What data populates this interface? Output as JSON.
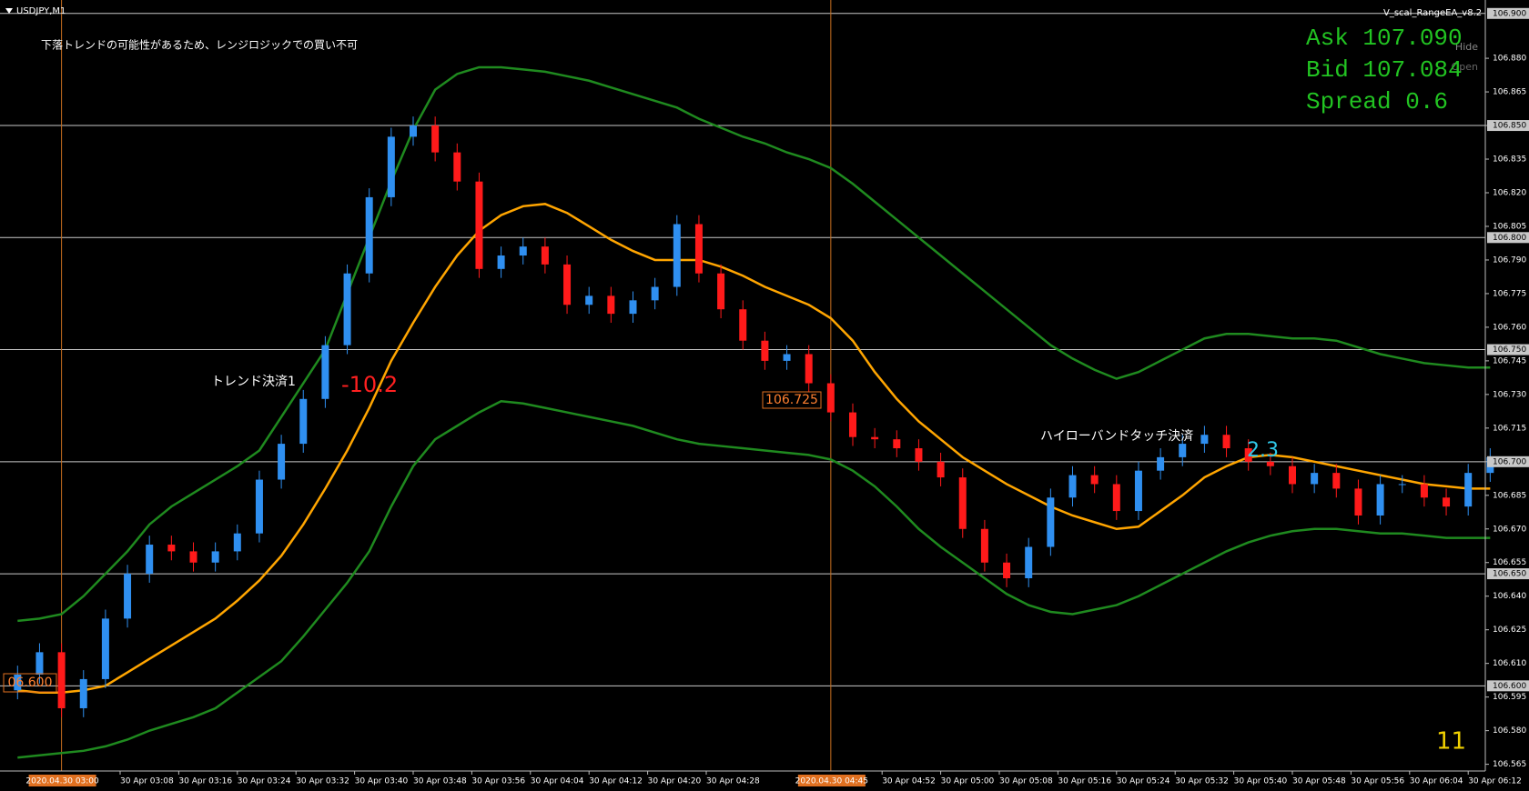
{
  "header": {
    "symbol": "USDJPY,M1",
    "ea": "V_scal_RangeEA_v8.2",
    "hide": "Hide",
    "open": "Open"
  },
  "info": {
    "ask": "Ask 107.090",
    "bid": "Bid 107.084",
    "spread": "Spread 0.6"
  },
  "notes": {
    "warning": "下落トレンドの可能性があるため、レンジロジックでの買い不可",
    "trend_exit": "トレンド決済1",
    "trend_result": "-10.2",
    "band_exit": "ハイローバンドタッチ決済",
    "band_result": "2.3",
    "counter": "11",
    "price_box": "106.725",
    "left_box": "06.600"
  },
  "chart_data": {
    "type": "candlestick",
    "x": [
      "30 Apr 02:54",
      "30 Apr 02:57",
      "30 Apr 03:00",
      "30 Apr 03:03",
      "30 Apr 03:06",
      "30 Apr 03:09",
      "30 Apr 03:12",
      "30 Apr 03:15",
      "30 Apr 03:18",
      "30 Apr 03:21",
      "30 Apr 03:24",
      "30 Apr 03:27",
      "30 Apr 03:30",
      "30 Apr 03:33",
      "30 Apr 03:36",
      "30 Apr 03:39",
      "30 Apr 03:42",
      "30 Apr 03:45",
      "30 Apr 03:48",
      "30 Apr 03:51",
      "30 Apr 03:54",
      "30 Apr 03:57",
      "30 Apr 04:00",
      "30 Apr 04:03",
      "30 Apr 04:06",
      "30 Apr 04:09",
      "30 Apr 04:12",
      "30 Apr 04:15",
      "30 Apr 04:18",
      "30 Apr 04:21",
      "30 Apr 04:24",
      "30 Apr 04:27",
      "30 Apr 04:30",
      "30 Apr 04:33",
      "30 Apr 04:36",
      "30 Apr 04:39",
      "30 Apr 04:42",
      "30 Apr 04:45",
      "30 Apr 04:48",
      "30 Apr 04:51",
      "30 Apr 04:54",
      "30 Apr 04:57",
      "30 Apr 05:00",
      "30 Apr 05:03",
      "30 Apr 05:06",
      "30 Apr 05:09",
      "30 Apr 05:12",
      "30 Apr 05:15",
      "30 Apr 05:18",
      "30 Apr 05:21",
      "30 Apr 05:24",
      "30 Apr 05:27",
      "30 Apr 05:30",
      "30 Apr 05:33",
      "30 Apr 05:36",
      "30 Apr 05:39",
      "30 Apr 05:42",
      "30 Apr 05:45",
      "30 Apr 05:48",
      "30 Apr 05:51",
      "30 Apr 05:54",
      "30 Apr 05:57",
      "30 Apr 06:00",
      "30 Apr 06:03",
      "30 Apr 06:06",
      "30 Apr 06:09",
      "30 Apr 06:12",
      "30 Apr 06:15"
    ],
    "open": [
      106.598,
      106.605,
      106.615,
      106.59,
      106.603,
      106.63,
      106.65,
      106.663,
      106.66,
      106.655,
      106.66,
      106.668,
      106.692,
      106.708,
      106.728,
      106.752,
      106.784,
      106.818,
      106.845,
      106.85,
      106.838,
      106.825,
      106.786,
      106.792,
      106.796,
      106.788,
      106.77,
      106.774,
      106.766,
      106.772,
      106.778,
      106.806,
      106.784,
      106.768,
      106.754,
      106.745,
      106.748,
      106.735,
      106.722,
      106.711,
      106.71,
      106.706,
      106.7,
      106.693,
      106.67,
      106.655,
      106.648,
      106.662,
      106.684,
      106.694,
      106.69,
      106.678,
      106.696,
      106.702,
      106.708,
      106.712,
      106.706,
      106.7,
      106.698,
      106.69,
      106.695,
      106.688,
      106.676,
      106.69,
      106.69,
      106.684,
      106.68,
      106.695
    ],
    "high": [
      106.609,
      106.619,
      106.619,
      106.607,
      106.634,
      106.654,
      106.667,
      106.667,
      106.664,
      106.664,
      106.672,
      106.696,
      106.712,
      106.732,
      106.756,
      106.788,
      106.822,
      106.849,
      106.854,
      106.854,
      106.842,
      106.829,
      106.796,
      106.8,
      106.8,
      106.792,
      106.778,
      106.778,
      106.776,
      106.782,
      106.81,
      106.81,
      106.788,
      106.772,
      106.758,
      106.752,
      106.752,
      106.739,
      106.726,
      106.715,
      106.714,
      106.71,
      106.704,
      106.697,
      106.674,
      106.659,
      106.666,
      106.688,
      106.698,
      106.698,
      106.694,
      106.7,
      106.706,
      106.712,
      106.716,
      106.716,
      106.71,
      106.704,
      106.702,
      106.699,
      106.699,
      106.692,
      106.694,
      106.694,
      106.694,
      106.688,
      106.699,
      106.706
    ],
    "low": [
      106.594,
      106.601,
      106.586,
      106.586,
      106.599,
      106.626,
      106.646,
      106.656,
      106.651,
      106.651,
      106.656,
      106.664,
      106.688,
      106.704,
      106.724,
      106.748,
      106.78,
      106.814,
      106.841,
      106.834,
      106.821,
      106.782,
      106.782,
      106.788,
      106.784,
      106.766,
      106.766,
      106.762,
      106.762,
      106.768,
      106.774,
      106.78,
      106.764,
      106.75,
      106.741,
      106.741,
      106.731,
      106.718,
      106.707,
      106.706,
      106.702,
      106.696,
      106.689,
      106.666,
      106.651,
      106.644,
      106.644,
      106.658,
      106.68,
      106.686,
      106.674,
      106.674,
      106.692,
      106.698,
      106.704,
      106.702,
      106.696,
      106.694,
      106.686,
      106.686,
      106.684,
      106.672,
      106.672,
      106.686,
      106.68,
      106.676,
      106.676,
      106.691
    ],
    "close": [
      106.605,
      106.615,
      106.59,
      106.603,
      106.63,
      106.65,
      106.663,
      106.66,
      106.655,
      106.66,
      106.668,
      106.692,
      106.708,
      106.728,
      106.752,
      106.784,
      106.818,
      106.845,
      106.85,
      106.838,
      106.825,
      106.786,
      106.792,
      106.796,
      106.788,
      106.77,
      106.774,
      106.766,
      106.772,
      106.778,
      106.806,
      106.784,
      106.768,
      106.754,
      106.745,
      106.748,
      106.735,
      106.722,
      106.711,
      106.71,
      106.706,
      106.7,
      106.693,
      106.67,
      106.655,
      106.648,
      106.662,
      106.684,
      106.694,
      106.69,
      106.678,
      106.696,
      106.702,
      106.708,
      106.712,
      106.706,
      106.7,
      106.698,
      106.69,
      106.695,
      106.688,
      106.676,
      106.69,
      106.69,
      106.684,
      106.68,
      106.695,
      106.702
    ],
    "up_color": "#2f8ff0",
    "down_color": "#ff1a1a",
    "overlays": [
      {
        "color": "#ffa500",
        "values": [
          106.598,
          106.597,
          106.597,
          106.598,
          106.6,
          106.606,
          106.612,
          106.618,
          106.624,
          106.63,
          106.638,
          106.647,
          106.658,
          106.672,
          106.688,
          106.705,
          106.724,
          106.745,
          106.762,
          106.778,
          106.792,
          106.803,
          106.81,
          106.814,
          106.815,
          106.811,
          106.805,
          106.799,
          106.794,
          106.79,
          106.79,
          106.79,
          106.787,
          106.783,
          106.778,
          106.774,
          106.77,
          106.764,
          106.754,
          106.74,
          106.728,
          106.718,
          106.71,
          106.702,
          106.696,
          106.69,
          106.685,
          106.68,
          106.676,
          106.673,
          106.67,
          106.671,
          106.678,
          106.685,
          106.693,
          106.698,
          106.702,
          106.703,
          106.702,
          106.7,
          106.698,
          106.696,
          106.694,
          106.692,
          106.69,
          106.689,
          106.688,
          106.688
        ]
      },
      {
        "color": "#1f8a1f",
        "values": [
          106.629,
          106.63,
          106.632,
          106.64,
          106.65,
          106.66,
          106.672,
          106.68,
          106.686,
          106.692,
          106.698,
          106.705,
          106.72,
          106.735,
          106.75,
          106.775,
          106.8,
          106.825,
          106.848,
          106.866,
          106.873,
          106.876,
          106.876,
          106.875,
          106.874,
          106.872,
          106.87,
          106.867,
          106.864,
          106.861,
          106.858,
          106.853,
          106.849,
          106.845,
          106.842,
          106.838,
          106.835,
          106.831,
          106.824,
          106.816,
          106.808,
          106.8,
          106.792,
          106.784,
          106.776,
          106.768,
          106.76,
          106.752,
          106.746,
          106.741,
          106.737,
          106.74,
          106.745,
          106.75,
          106.755,
          106.757,
          106.757,
          106.756,
          106.755,
          106.755,
          106.754,
          106.751,
          106.748,
          106.746,
          106.744,
          106.743,
          106.742,
          106.742
        ]
      },
      {
        "color": "#1f8a1f",
        "values": [
          106.568,
          106.569,
          106.57,
          106.571,
          106.573,
          106.576,
          106.58,
          106.583,
          106.586,
          106.59,
          106.597,
          106.604,
          106.611,
          106.622,
          106.634,
          106.646,
          106.66,
          106.68,
          106.698,
          106.71,
          106.716,
          106.722,
          106.727,
          106.726,
          106.724,
          106.722,
          106.72,
          106.718,
          106.716,
          106.713,
          106.71,
          106.708,
          106.707,
          106.706,
          106.705,
          106.704,
          106.703,
          106.701,
          106.696,
          106.689,
          106.68,
          106.67,
          106.662,
          106.655,
          106.648,
          106.641,
          106.636,
          106.633,
          106.632,
          106.634,
          106.636,
          106.64,
          106.645,
          106.65,
          106.655,
          106.66,
          106.664,
          106.667,
          106.669,
          106.67,
          106.67,
          106.669,
          106.668,
          106.668,
          106.667,
          106.666,
          106.666,
          106.666
        ]
      }
    ],
    "ylim": [
      106.562,
      106.906
    ],
    "yticks": [
      {
        "value": 106.565,
        "label": "106.565"
      },
      {
        "value": 106.58,
        "label": "106.580"
      },
      {
        "value": 106.595,
        "label": "106.595"
      },
      {
        "value": 106.61,
        "label": "106.610"
      },
      {
        "value": 106.625,
        "label": "106.625"
      },
      {
        "value": 106.64,
        "label": "106.640"
      },
      {
        "value": 106.655,
        "label": "106.655"
      },
      {
        "value": 106.67,
        "label": "106.670"
      },
      {
        "value": 106.685,
        "label": "106.685"
      },
      {
        "value": 106.7,
        "label": "106.700"
      },
      {
        "value": 106.715,
        "label": "106.715"
      },
      {
        "value": 106.73,
        "label": "106.730"
      },
      {
        "value": 106.745,
        "label": "106.745"
      },
      {
        "value": 106.76,
        "label": "106.760"
      },
      {
        "value": 106.775,
        "label": "106.775"
      },
      {
        "value": 106.79,
        "label": "106.790"
      },
      {
        "value": 106.805,
        "label": "106.805"
      },
      {
        "value": 106.82,
        "label": "106.820"
      },
      {
        "value": 106.835,
        "label": "106.835"
      },
      {
        "value": 106.85,
        "label": "106.850"
      },
      {
        "value": 106.865,
        "label": "106.865"
      },
      {
        "value": 106.88,
        "label": "106.880"
      }
    ],
    "levels": [
      {
        "value": 106.6,
        "label": "106.600"
      },
      {
        "value": 106.65,
        "label": "106.650"
      },
      {
        "value": 106.7,
        "label": "106.700"
      },
      {
        "value": 106.75,
        "label": "106.750"
      },
      {
        "value": 106.8,
        "label": "106.800"
      },
      {
        "value": 106.85,
        "label": "106.850"
      },
      {
        "value": 106.9,
        "label": "106.900"
      }
    ],
    "xticks": [
      "30 Apr 03:08",
      "30 Apr 03:16",
      "30 Apr 03:24",
      "30 Apr 03:32",
      "30 Apr 03:40",
      "30 Apr 03:48",
      "30 Apr 03:56",
      "30 Apr 04:04",
      "30 Apr 04:12",
      "30 Apr 04:20",
      "30 Apr 04:28",
      "30 Apr 04:52",
      "30 Apr 05:00",
      "30 Apr 05:08",
      "30 Apr 05:16",
      "30 Apr 05:24",
      "30 Apr 05:32",
      "30 Apr 05:40",
      "30 Apr 05:48",
      "30 Apr 05:56",
      "30 Apr 06:04",
      "30 Apr 06:12"
    ],
    "time_markers": [
      "2020.04.30 03:00",
      "2020.04.30 04:45"
    ]
  }
}
